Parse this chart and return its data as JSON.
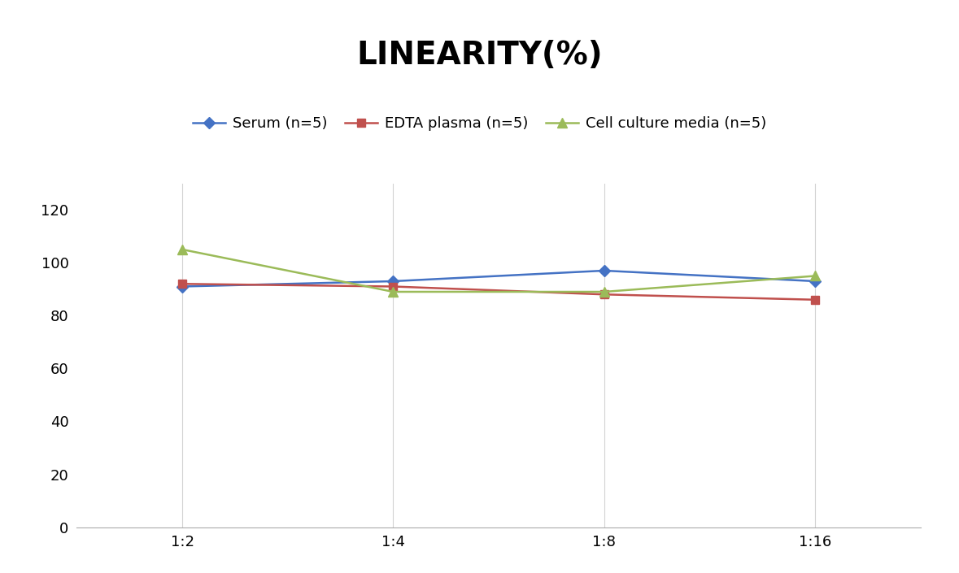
{
  "title": "LINEARITY(%)",
  "x_labels": [
    "1:2",
    "1:4",
    "1:8",
    "1:16"
  ],
  "x_positions": [
    0,
    1,
    2,
    3
  ],
  "serum": [
    91,
    93,
    97,
    93
  ],
  "edta": [
    92,
    91,
    88,
    86
  ],
  "cell": [
    105,
    89,
    89,
    95
  ],
  "serum_label": "Serum (n=5)",
  "edta_label": "EDTA plasma (n=5)",
  "cell_label": "Cell culture media (n=5)",
  "serum_color": "#4472C4",
  "edta_color": "#C0504D",
  "cell_color": "#9BBB59",
  "ylim": [
    0,
    130
  ],
  "yticks": [
    0,
    20,
    40,
    60,
    80,
    100,
    120
  ],
  "background_color": "#FFFFFF",
  "grid_color": "#D3D3D3",
  "title_fontsize": 28,
  "legend_fontsize": 13,
  "tick_fontsize": 13
}
